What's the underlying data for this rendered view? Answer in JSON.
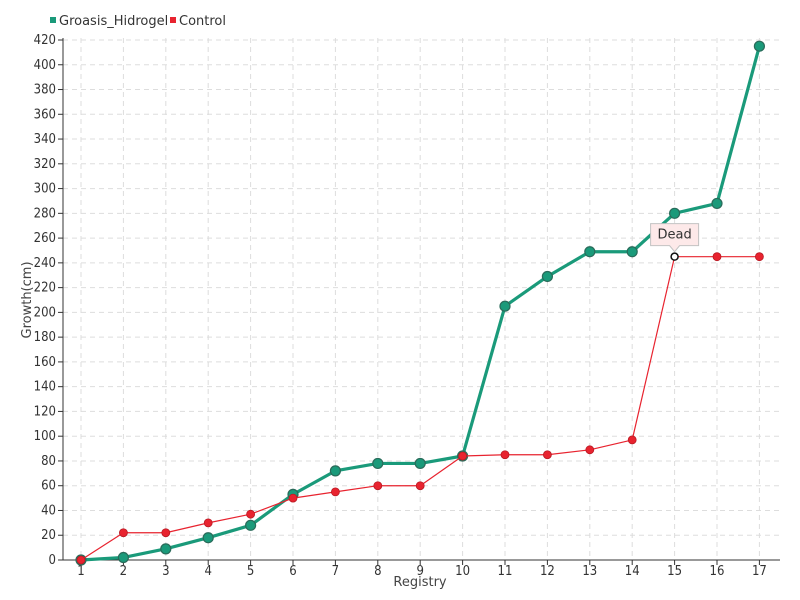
{
  "chart_data": {
    "type": "line",
    "title": "",
    "xlabel": "Registry",
    "ylabel": "Growth(cm)",
    "x": [
      1,
      2,
      3,
      4,
      5,
      6,
      7,
      8,
      9,
      10,
      11,
      12,
      13,
      14,
      15,
      16,
      17
    ],
    "ylim": [
      0,
      420
    ],
    "yticks": [
      0,
      20,
      40,
      60,
      80,
      100,
      120,
      140,
      160,
      180,
      200,
      220,
      240,
      260,
      280,
      300,
      320,
      340,
      360,
      380,
      400,
      420
    ],
    "grid": true,
    "legend_position": "top-left",
    "series": [
      {
        "name": "Groasis_Hidrogel",
        "color": "#1a9a7a",
        "values": [
          0,
          2,
          9,
          18,
          28,
          53,
          72,
          78,
          78,
          84,
          205,
          229,
          249,
          249,
          280,
          288,
          415
        ]
      },
      {
        "name": "Control",
        "color": "#e8232f",
        "values": [
          0,
          22,
          22,
          30,
          37,
          50,
          55,
          60,
          60,
          84,
          85,
          85,
          89,
          97,
          245,
          245,
          245
        ]
      }
    ],
    "annotation": {
      "text": "Dead",
      "series": 1,
      "index": 14
    }
  }
}
